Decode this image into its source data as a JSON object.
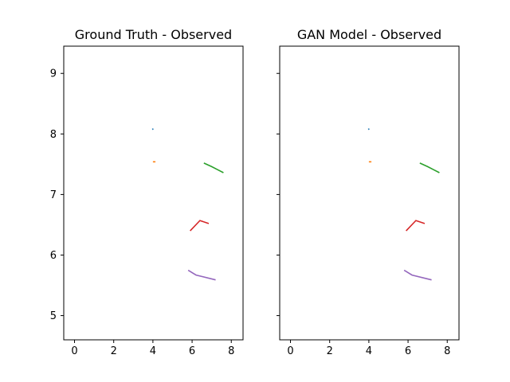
{
  "chart_data": [
    {
      "type": "line",
      "title": "Ground Truth - Observed",
      "xlim": [
        -0.55,
        8.6
      ],
      "ylim": [
        4.6,
        9.45
      ],
      "xticks": [
        0,
        2,
        4,
        6,
        8
      ],
      "yticks": [
        5,
        6,
        7,
        8,
        9
      ],
      "show_yticklabels": true,
      "grid": false,
      "series": [
        {
          "color": "#1f77b4",
          "points": [
            [
              3.98,
              8.09
            ],
            [
              4.01,
              8.07
            ]
          ]
        },
        {
          "color": "#ff7f0e",
          "points": [
            [
              4.0,
              7.54
            ],
            [
              4.13,
              7.54
            ]
          ]
        },
        {
          "color": "#2ca02c",
          "points": [
            [
              6.6,
              7.52
            ],
            [
              7.0,
              7.46
            ],
            [
              7.3,
              7.41
            ],
            [
              7.6,
              7.36
            ]
          ]
        },
        {
          "color": "#d62728",
          "points": [
            [
              5.9,
              6.4
            ],
            [
              6.4,
              6.57
            ],
            [
              6.85,
              6.52
            ]
          ]
        },
        {
          "color": "#9467bd",
          "points": [
            [
              5.8,
              5.75
            ],
            [
              6.2,
              5.67
            ],
            [
              7.2,
              5.59
            ]
          ]
        }
      ]
    },
    {
      "type": "line",
      "title": "GAN Model - Observed",
      "xlim": [
        -0.55,
        8.6
      ],
      "ylim": [
        4.6,
        9.45
      ],
      "xticks": [
        0,
        2,
        4,
        6,
        8
      ],
      "yticks": [
        5,
        6,
        7,
        8,
        9
      ],
      "show_yticklabels": false,
      "grid": false,
      "series": [
        {
          "color": "#1f77b4",
          "points": [
            [
              3.98,
              8.09
            ],
            [
              4.01,
              8.07
            ]
          ]
        },
        {
          "color": "#ff7f0e",
          "points": [
            [
              4.0,
              7.54
            ],
            [
              4.13,
              7.54
            ]
          ]
        },
        {
          "color": "#2ca02c",
          "points": [
            [
              6.6,
              7.52
            ],
            [
              7.0,
              7.46
            ],
            [
              7.3,
              7.41
            ],
            [
              7.6,
              7.36
            ]
          ]
        },
        {
          "color": "#d62728",
          "points": [
            [
              5.9,
              6.4
            ],
            [
              6.4,
              6.57
            ],
            [
              6.85,
              6.52
            ]
          ]
        },
        {
          "color": "#9467bd",
          "points": [
            [
              5.8,
              5.75
            ],
            [
              6.2,
              5.67
            ],
            [
              7.2,
              5.59
            ]
          ]
        }
      ]
    }
  ]
}
